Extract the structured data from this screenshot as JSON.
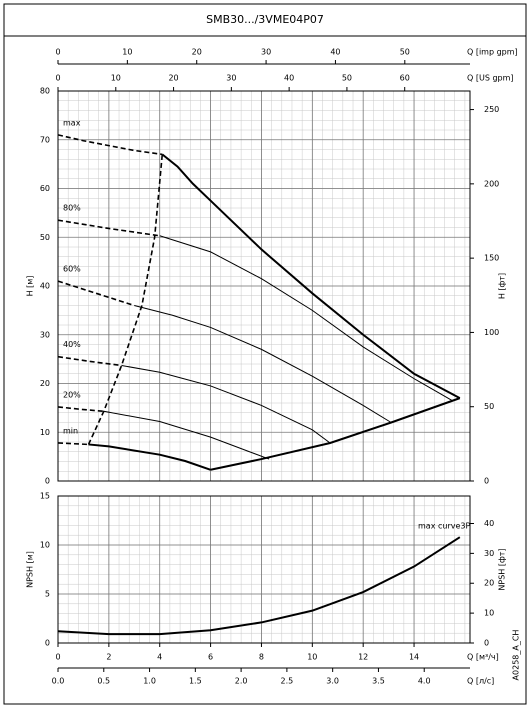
{
  "title": "SMB30.../3VME04P07",
  "code": "A0258_A_CH",
  "chart_data": [
    {
      "type": "line",
      "ylabel": "H [м]",
      "ylim": [
        0,
        80
      ],
      "yticks": [
        0,
        10,
        20,
        30,
        40,
        50,
        60,
        70,
        80
      ],
      "y2label": "H [фт]",
      "y2lim": [
        0,
        262.5
      ],
      "y2ticks": [
        0,
        50,
        100,
        150,
        200,
        250
      ],
      "xlim": [
        0,
        16.2
      ],
      "xticks": [
        0,
        2,
        4,
        6,
        8,
        10,
        12,
        14
      ],
      "grid": true,
      "top_axes": [
        {
          "label": "Q [imp gpm]",
          "lim": [
            0,
            59.4
          ],
          "ticks": [
            0,
            10,
            20,
            30,
            40,
            50
          ]
        },
        {
          "label": "Q [US gpm]",
          "lim": [
            0,
            71.3
          ],
          "ticks": [
            0,
            10,
            20,
            30,
            40,
            50,
            60
          ]
        }
      ],
      "series": [
        {
          "name": "max",
          "color": "#000000",
          "width": 2,
          "dashed_segments": 4,
          "x": [
            0,
            1,
            2,
            3,
            4.1,
            4.7,
            5.3,
            6,
            8,
            10,
            12,
            14,
            15.8
          ],
          "values": [
            71,
            69.8,
            68.8,
            67.8,
            67,
            64.5,
            61,
            57.5,
            47.5,
            38.5,
            30,
            22,
            17
          ]
        },
        {
          "name": "80%",
          "color": "#000000",
          "width": 1,
          "dashed_segments": 2,
          "x": [
            0,
            2,
            4,
            6,
            8,
            10,
            12,
            14,
            15.5
          ],
          "values": [
            53.5,
            51.8,
            50.3,
            47,
            41.5,
            35,
            27.5,
            21,
            16.5
          ]
        },
        {
          "name": "60%",
          "color": "#000000",
          "width": 1,
          "dashed_segments": 2,
          "x": [
            0,
            1.5,
            3,
            4.5,
            6,
            8,
            10,
            12,
            13.1
          ],
          "values": [
            41,
            38.5,
            36,
            34,
            31.5,
            27,
            21.5,
            15.5,
            12
          ]
        },
        {
          "name": "40%",
          "color": "#000000",
          "width": 1,
          "dashed_segments": 2,
          "x": [
            0,
            1.3,
            2.5,
            4,
            6,
            8,
            10,
            10.7
          ],
          "values": [
            25.5,
            24.5,
            23.7,
            22.3,
            19.5,
            15.5,
            10.5,
            7.8
          ]
        },
        {
          "name": "20%",
          "color": "#000000",
          "width": 1,
          "dashed_segments": 2,
          "x": [
            0,
            0.9,
            1.8,
            4,
            6,
            8.3
          ],
          "values": [
            15.2,
            14.7,
            14.3,
            12.2,
            9,
            4.5
          ]
        },
        {
          "name": "min",
          "color": "#000000",
          "width": 2,
          "dashed_segments": 1,
          "x": [
            0,
            1.2,
            2,
            4,
            5,
            6
          ],
          "values": [
            7.8,
            7.5,
            7.1,
            5.4,
            4.1,
            2.3
          ]
        },
        {
          "color": "#000000",
          "width": 2,
          "dashed_segments": 0,
          "x": [
            6,
            8,
            10.7,
            13.1,
            15.8
          ],
          "values": [
            2.3,
            4.5,
            7.8,
            12,
            17
          ]
        },
        {
          "color": "#000000",
          "width": 1,
          "dashed_segments": 5,
          "x": [
            1.2,
            1.8,
            2.5,
            3.3,
            3.8,
            4.1
          ],
          "values": [
            7.5,
            14.3,
            23.7,
            36,
            50,
            67
          ]
        }
      ]
    },
    {
      "type": "line",
      "ylabel": "NPSH [м]",
      "ylim": [
        0,
        15
      ],
      "yticks": [
        0,
        5,
        10,
        15
      ],
      "y2label": "NPSH [фт]",
      "y2lim": [
        0,
        49.2
      ],
      "y2ticks": [
        0,
        10,
        20,
        30,
        40
      ],
      "xlim": [
        0,
        16.2
      ],
      "xticks": [
        0,
        2,
        4,
        6,
        8,
        10,
        12,
        14
      ],
      "grid": true,
      "annotation": "max curve3P",
      "bottom_axes": [
        {
          "label": "Q [м³/ч]",
          "lim": [
            0,
            16.2
          ],
          "ticks": [
            0,
            2,
            4,
            6,
            8,
            10,
            12,
            14
          ]
        },
        {
          "label": "Q [л/с]",
          "lim": [
            0,
            4.5
          ],
          "ticks": [
            {
              "value": 0,
              "label": "0.0"
            },
            {
              "value": 0.5,
              "label": "0.5"
            },
            {
              "value": 1,
              "label": "1.0"
            },
            {
              "value": 1.5,
              "label": "1.5"
            },
            {
              "value": 2,
              "label": "2.0"
            },
            {
              "value": 2.5,
              "label": "2.5"
            },
            {
              "value": 3,
              "label": "3.0"
            },
            {
              "value": 3.5,
              "label": "3.5"
            },
            {
              "value": 4,
              "label": "4.0"
            }
          ]
        }
      ],
      "series": [
        {
          "color": "#000000",
          "width": 2,
          "dashed_segments": 0,
          "x": [
            0,
            2,
            4,
            6,
            8,
            10,
            12,
            14,
            15.8
          ],
          "values": [
            1.2,
            0.9,
            0.9,
            1.3,
            2.1,
            3.3,
            5.2,
            7.8,
            10.8
          ]
        }
      ]
    }
  ]
}
